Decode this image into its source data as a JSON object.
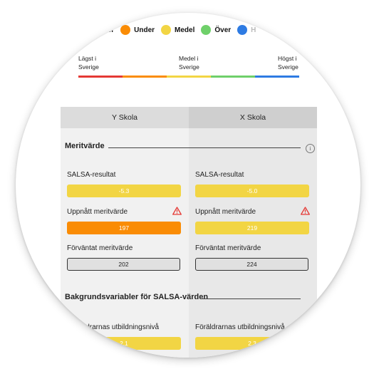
{
  "legend": [
    {
      "label": "Långt under",
      "color": "#e53935",
      "visible": "c under"
    },
    {
      "label": "Under",
      "color": "#fa8c05",
      "visible": "Under"
    },
    {
      "label": "Medel",
      "color": "#f2d544",
      "visible": "Medel"
    },
    {
      "label": "Över",
      "color": "#6fd06a",
      "visible": "Över"
    },
    {
      "label": "Högt över",
      "color": "#2e7be3",
      "visible": "H"
    }
  ],
  "scale": {
    "low": "Lägst i\nSverige",
    "low_line1": "Lägst i",
    "low_line2": "Sverige",
    "mid_line1": "Medel i",
    "mid_line2": "Sverige",
    "high_line1": "Högst i",
    "high_line2": "Sverige",
    "segments": [
      "#e53935",
      "#fa8c05",
      "#f2d544",
      "#6fd06a",
      "#2e7be3"
    ]
  },
  "columns": {
    "left": "Y Skola",
    "right": "X Skola"
  },
  "sections": {
    "meritvarde": "Meritvärde",
    "bakgrund": "Bakgrundsvariabler för SALSA-värden"
  },
  "metrics": {
    "salsa_label": "SALSA-resultat",
    "uppnatt_label": "Uppnått meritvärde",
    "forvantat_label": "Förväntat meritvärde",
    "foraldrar_label": "Föräldrarnas utbildningsnivå",
    "foraldrar_label_left": "ldrarnas utbildningsnivå"
  },
  "values": {
    "left": {
      "salsa": "-5.3",
      "uppnatt": "197",
      "forvantat": "202",
      "foraldrar": "2.1"
    },
    "right": {
      "salsa": "-5.0",
      "uppnatt": "219",
      "forvantat": "224",
      "foraldrar": "2.3"
    }
  },
  "colors": {
    "yellow": "#f2d544",
    "orange": "#fa8c05",
    "warning": "#e53935"
  }
}
